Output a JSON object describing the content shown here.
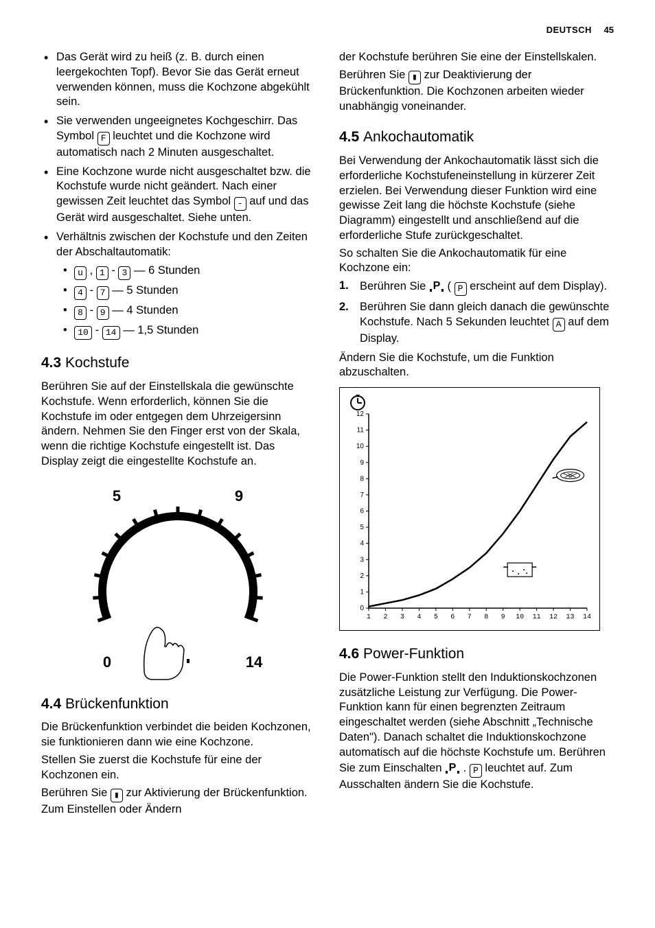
{
  "header": {
    "lang": "DEUTSCH",
    "page": "45"
  },
  "col1": {
    "bullets": [
      "Das Gerät wird zu heiß (z. B. durch einen leergekochten Topf). Bevor Sie das Gerät erneut verwenden können, muss die Kochzone abgekühlt sein.",
      [
        "Sie verwenden ungeeignetes Kochgeschirr. Das Symbol ",
        "F",
        " leuchtet und die Kochzone wird automatisch nach 2 Minuten ausgeschaltet."
      ],
      [
        "Eine Kochzone wurde nicht ausgeschaltet bzw. die Kochstufe wurde nicht geändert. Nach einer gewissen Zeit leuchtet das Symbol ",
        "-",
        " auf und das Gerät wird ausgeschaltet. Siehe unten."
      ],
      "Verhältnis zwischen der Kochstufe und den Zeiten der Abschaltautomatik:"
    ],
    "timelist": [
      {
        "syms": [
          "u",
          "1",
          "3"
        ],
        "sep": [
          ",",
          "-"
        ],
        "tail": " — 6 Stunden"
      },
      {
        "syms": [
          "4",
          "7"
        ],
        "sep": [
          "-"
        ],
        "tail": " — 5 Stunden"
      },
      {
        "syms": [
          "8",
          "9"
        ],
        "sep": [
          "-"
        ],
        "tail": " — 4 Stunden"
      },
      {
        "syms": [
          "10",
          "14"
        ],
        "sep": [
          "-"
        ],
        "tail": " — 1,5 Stunden",
        "wide": true
      }
    ],
    "sec43": {
      "num": "4.3",
      "title": "Kochstufe",
      "body": "Berühren Sie auf der Einstellskala die gewünschte Kochstufe. Wenn erforderlich, können Sie die Kochstufe im oder entgegen dem Uhrzeigersinn ändern. Nehmen Sie den Finger erst von der Skala, wenn die richtige Kochstufe eingestellt ist. Das Display zeigt die eingestellte Kochstufe an."
    },
    "dial": {
      "labels": {
        "tl": "5",
        "tr": "9",
        "bl": "0",
        "br": "14",
        "p": "P"
      },
      "tick_count": 14,
      "arc_color": "#000000",
      "arc_width": 12,
      "font_size_labels": 22
    },
    "sec44": {
      "num": "4.4",
      "title": "Brückenfunktion",
      "p1": "Die Brückenfunktion verbindet die beiden Kochzonen, sie funktionieren dann wie eine Kochzone.",
      "p2": "Stellen Sie zuerst die Kochstufe für eine der Kochzonen ein.",
      "p3a": "Berühren Sie ",
      "p3b": " zur Aktivierung der Brückenfunktion. Zum Einstellen oder Ändern"
    }
  },
  "col2": {
    "cont1": "der Kochstufe berühren Sie eine der Einstellskalen.",
    "cont2a": "Berühren Sie ",
    "cont2b": " zur Deaktivierung der Brückenfunktion. Die Kochzonen arbeiten wieder unabhängig voneinander.",
    "sec45": {
      "num": "4.5",
      "title": "Ankochautomatik",
      "p1": "Bei Verwendung der Ankochautomatik lässt sich die erforderliche Kochstufeneinstellung in kürzerer Zeit erzielen. Bei Verwendung dieser Funktion wird eine gewisse Zeit lang die höchste Kochstufe (siehe Diagramm) eingestellt und anschließend auf die erforderliche Stufe zurückgeschaltet.",
      "p2": "So schalten Sie die Ankochautomatik für eine Kochzone ein:",
      "step1a": "Berühren Sie ",
      "step1b": " ( ",
      "step1sym": "P",
      "step1c": " erscheint auf dem Display).",
      "step2a": "Berühren Sie dann gleich danach die gewünschte Kochstufe. Nach 5 Sekunden leuchtet ",
      "step2sym": "A",
      "step2b": " auf dem Display.",
      "p3": "Ändern Sie die Kochstufe, um die Funktion abzuschalten."
    },
    "chart": {
      "type": "line",
      "y_ticks": [
        0,
        1,
        2,
        3,
        4,
        5,
        6,
        7,
        8,
        9,
        10,
        11,
        12
      ],
      "x_ticks": [
        1,
        2,
        3,
        4,
        5,
        6,
        7,
        8,
        9,
        10,
        11,
        12,
        13,
        14
      ],
      "curve": [
        [
          1,
          0.1
        ],
        [
          2,
          0.3
        ],
        [
          3,
          0.5
        ],
        [
          4,
          0.8
        ],
        [
          5,
          1.2
        ],
        [
          6,
          1.8
        ],
        [
          7,
          2.5
        ],
        [
          8,
          3.4
        ],
        [
          9,
          4.6
        ],
        [
          10,
          6.0
        ],
        [
          11,
          7.6
        ],
        [
          12,
          9.2
        ],
        [
          13,
          10.6
        ],
        [
          14,
          11.5
        ]
      ],
      "axis_color": "#000000",
      "line_color": "#000000",
      "line_width": 2.5,
      "tick_fontsize": 10,
      "pot_x": 10,
      "pot_y": 2.2,
      "pan_x": 13,
      "pan_y": 8.2,
      "clock_icon": true
    },
    "sec46": {
      "num": "4.6",
      "title": "Power-Funktion",
      "p1a": "Die Power-Funktion stellt den Induktionskochzonen zusätzliche Leistung zur Verfügung. Die Power-Funktion kann für einen begrenzten Zeitraum eingeschaltet werden (siehe Abschnitt „Technische Daten\"). Danach schaltet die Induktionskochzone automatisch auf die höchste Kochstufe um. Berühren Sie zum Einschalten ",
      "p1b": " . ",
      "p1sym": "P",
      "p1c": " leuchtet auf. Zum Ausschalten ändern Sie die Kochstufe."
    }
  }
}
